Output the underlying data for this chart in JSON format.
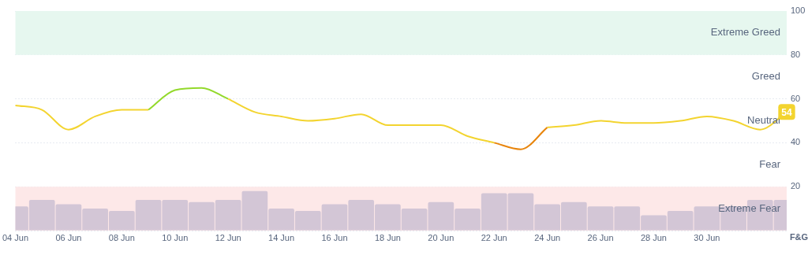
{
  "chart_data": {
    "type": "line",
    "ylabel": "F&G",
    "x": [
      "--06-04",
      "--06-05",
      "--06-06",
      "--06-07",
      "--06-08",
      "--06-09",
      "--06-10",
      "--06-11",
      "--06-12",
      "--06-13",
      "--06-14",
      "--06-15",
      "--06-16",
      "--06-17",
      "--06-18",
      "--06-19",
      "--06-20",
      "--06-21",
      "--06-22",
      "--06-23",
      "--06-24",
      "--06-25",
      "--06-26",
      "--06-27",
      "--06-28",
      "--06-29",
      "--06-30",
      "--07-01",
      "--07-02",
      "--07-03"
    ],
    "series": [
      {
        "type": "bar",
        "color": "#d3c6d6",
        "values": [
          11,
          14,
          12,
          10,
          9,
          14,
          14,
          13,
          14,
          18,
          10,
          9,
          12,
          14,
          12,
          10,
          13,
          10,
          17,
          17,
          12,
          13,
          11,
          11,
          7,
          9,
          11,
          11,
          14,
          14
        ]
      },
      {
        "color": "#f3d42f",
        "values": [
          57,
          55,
          46,
          52,
          55,
          55,
          null,
          null,
          60,
          54,
          52,
          50,
          51,
          53,
          48,
          48,
          48,
          43,
          40,
          null,
          47,
          48,
          50,
          49,
          49,
          50,
          52,
          50,
          46,
          54
        ],
        "value_labels": [
          null,
          null,
          null,
          null,
          null,
          null,
          null,
          null,
          null,
          null,
          null,
          null,
          null,
          null,
          null,
          null,
          null,
          null,
          null,
          null,
          null,
          null,
          null,
          null,
          null,
          null,
          null,
          null,
          null,
          "54"
        ]
      },
      {
        "color": "#93d92b",
        "values": [
          null,
          null,
          null,
          null,
          null,
          55,
          64,
          65,
          60,
          null,
          null,
          null,
          null,
          null,
          null,
          null,
          null,
          null,
          null,
          null,
          null,
          null,
          null,
          null,
          null,
          null,
          null,
          null,
          null,
          null
        ]
      },
      {
        "color": "#e8850c",
        "values": [
          null,
          null,
          null,
          null,
          null,
          null,
          null,
          null,
          null,
          null,
          null,
          null,
          null,
          null,
          null,
          null,
          null,
          null,
          40,
          37,
          47,
          null,
          null,
          null,
          null,
          null,
          null,
          null,
          null,
          null
        ]
      }
    ],
    "xlim": [
      "--06-04",
      "--07-03"
    ],
    "xticks": [
      {
        "value": "--06-04",
        "label": "04 Jun"
      },
      {
        "value": "--06-06",
        "label": "06 Jun"
      },
      {
        "value": "--06-08",
        "label": "08 Jun"
      },
      {
        "value": "--06-10",
        "label": "10 Jun"
      },
      {
        "value": "--06-12",
        "label": "12 Jun"
      },
      {
        "value": "--06-14",
        "label": "14 Jun"
      },
      {
        "value": "--06-16",
        "label": "16 Jun"
      },
      {
        "value": "--06-18",
        "label": "18 Jun"
      },
      {
        "value": "--06-20",
        "label": "20 Jun"
      },
      {
        "value": "--06-22",
        "label": "22 Jun"
      },
      {
        "value": "--06-24",
        "label": "24 Jun"
      },
      {
        "value": "--06-26",
        "label": "26 Jun"
      },
      {
        "value": "--06-28",
        "label": "28 Jun"
      },
      {
        "value": "--06-30",
        "label": "30 Jun"
      }
    ],
    "ylim": [
      0,
      100
    ],
    "yticks": [
      {
        "value": 0,
        "label": null
      },
      20,
      40,
      60,
      80,
      100
    ],
    "bands": [
      {
        "axis": "y",
        "from": 80,
        "to": 100,
        "label": "Extreme Greed",
        "color": "#e6f7ef"
      },
      {
        "axis": "y",
        "from": 0,
        "to": 20,
        "label": "Extreme Fear",
        "color": "#fde8e8"
      }
    ],
    "annotations": [
      "Greed",
      "Neutral",
      "Fear"
    ],
    "grid": "y",
    "legend": false,
    "marker": "none",
    "line_style": "solid"
  }
}
